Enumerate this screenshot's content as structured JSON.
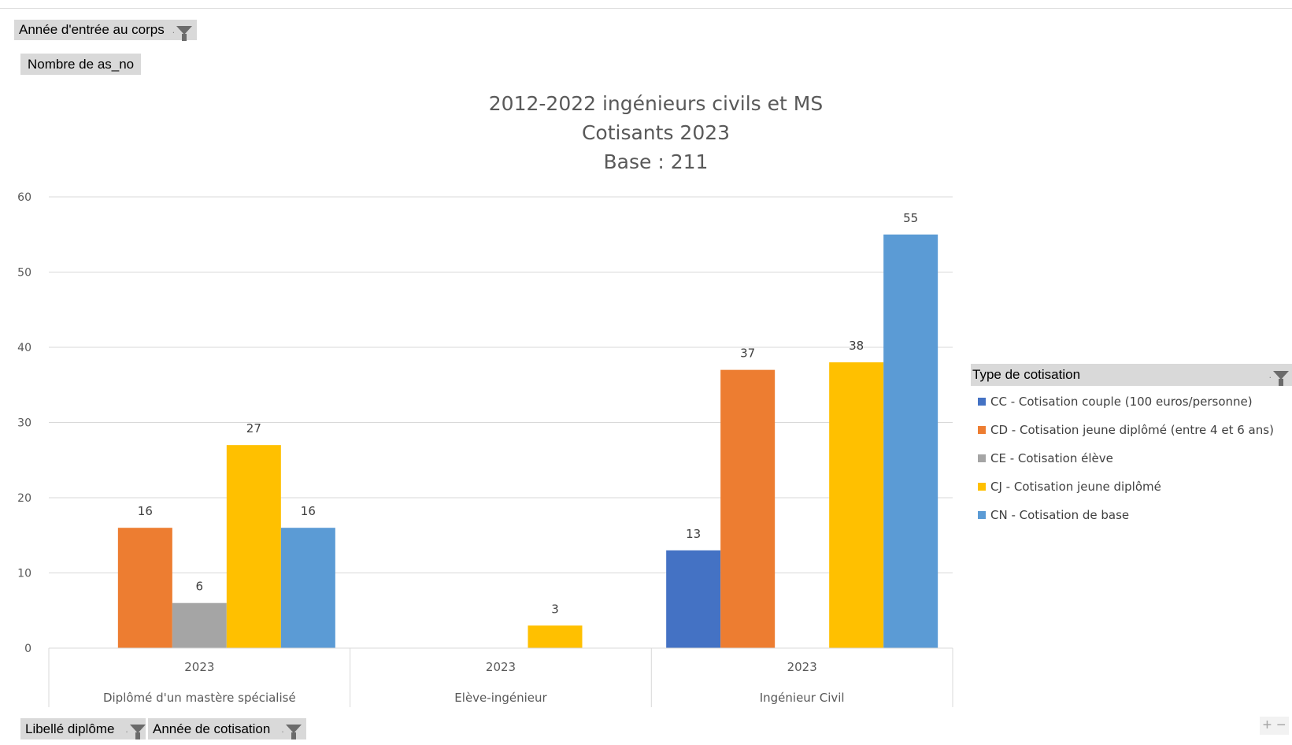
{
  "filters": {
    "report_filter_label": "Année d'entrée au corps",
    "value_field_label": "Nombre de as_no",
    "axis_fields": [
      "Libellé diplôme",
      "Année de cotisation"
    ]
  },
  "legend": {
    "title": "Type de cotisation",
    "items": [
      {
        "label": "CC - Cotisation couple (100 euros/personne)",
        "color": "#4472c4"
      },
      {
        "label": "CD - Cotisation jeune diplômé (entre 4 et 6 ans)",
        "color": "#ed7d31"
      },
      {
        "label": "CE - Cotisation élève",
        "color": "#a5a5a5"
      },
      {
        "label": "CJ - Cotisation jeune diplômé",
        "color": "#ffc000"
      },
      {
        "label": "CN - Cotisation de base",
        "color": "#5b9bd5"
      }
    ]
  },
  "zoom": {
    "plus": "+",
    "minus": "−"
  },
  "chart_data": {
    "type": "bar",
    "title_lines": [
      "2012-2022 ingénieurs civils et MS",
      "Cotisants 2023",
      "Base : 211"
    ],
    "categories": [
      {
        "year": "2023",
        "label": "Diplômé d'un mastère spécialisé"
      },
      {
        "year": "2023",
        "label": "Elève-ingénieur"
      },
      {
        "year": "2023",
        "label": "Ingénieur Civil"
      }
    ],
    "series": [
      {
        "name": "CC - Cotisation couple (100 euros/personne)",
        "color": "#4472c4",
        "values": [
          null,
          null,
          13
        ]
      },
      {
        "name": "CD - Cotisation jeune diplômé (entre 4 et 6 ans)",
        "color": "#ed7d31",
        "values": [
          16,
          null,
          37
        ]
      },
      {
        "name": "CE - Cotisation élève",
        "color": "#a5a5a5",
        "values": [
          6,
          null,
          null
        ]
      },
      {
        "name": "CJ - Cotisation jeune diplômé",
        "color": "#ffc000",
        "values": [
          27,
          3,
          38
        ]
      },
      {
        "name": "CN - Cotisation de base",
        "color": "#5b9bd5",
        "values": [
          16,
          null,
          55
        ]
      }
    ],
    "yticks": [
      0,
      10,
      20,
      30,
      40,
      50,
      60
    ],
    "ylim": [
      0,
      60
    ],
    "grid": true,
    "legend_position": "right"
  }
}
